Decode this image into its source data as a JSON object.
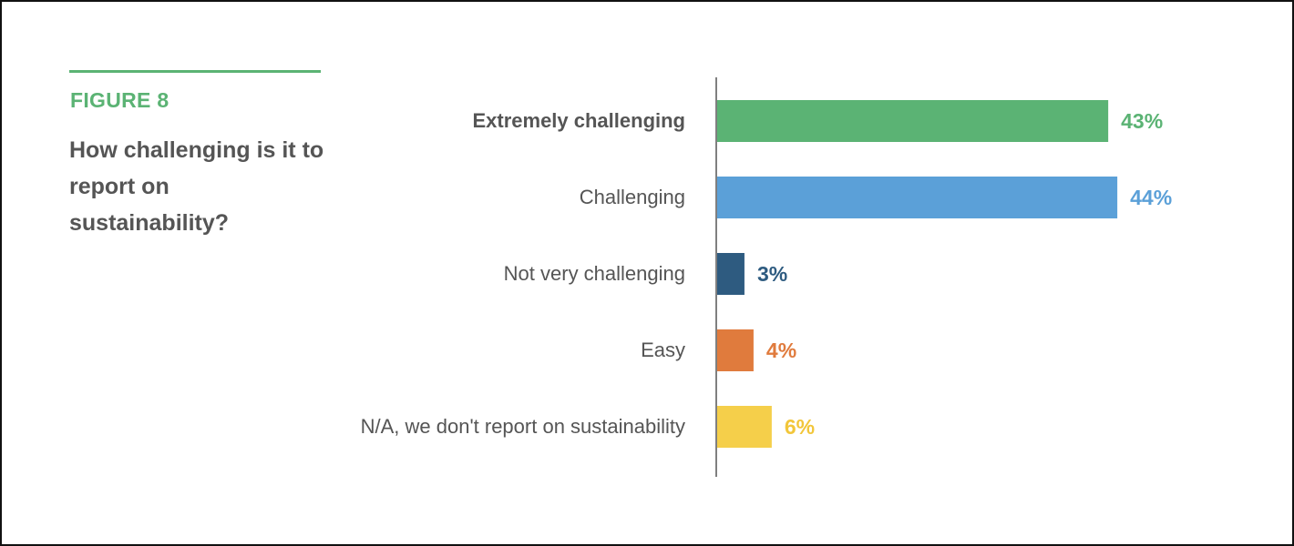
{
  "figure": {
    "label": "FIGURE 8",
    "title": "How challenging is it to report on sustainability?",
    "accent_color": "#5bb374"
  },
  "chart_data": {
    "type": "bar",
    "orientation": "horizontal",
    "title": "How challenging is it to report on sustainability?",
    "categories": [
      "Extremely challenging",
      "Challenging",
      "Not very challenging",
      "Easy",
      "N/A, we don't report on sustainability"
    ],
    "values": [
      43,
      44,
      3,
      4,
      6
    ],
    "value_labels": [
      "43%",
      "44%",
      "3%",
      "4%",
      "6%"
    ],
    "colors": [
      "#5bb374",
      "#5ba0d8",
      "#2e5b80",
      "#e07b3d",
      "#f5cf4a"
    ],
    "bold_category_index": 0,
    "xlim": [
      0,
      100
    ],
    "grid": false,
    "legend": "none"
  }
}
